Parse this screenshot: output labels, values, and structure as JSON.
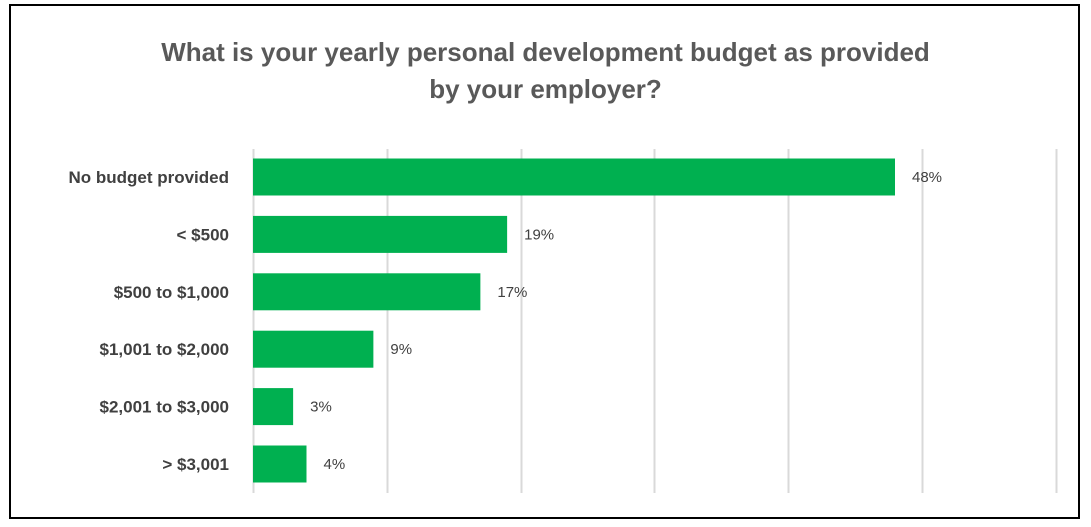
{
  "chart_data": {
    "type": "bar",
    "orientation": "horizontal",
    "title_lines": [
      "What is your yearly personal development budget as provided",
      "by your employer?"
    ],
    "categories": [
      "No budget provided",
      "< $500",
      "$500 to $1,000",
      "$1,001 to $2,000",
      "$2,001 to $3,000",
      "> $3,001"
    ],
    "values": [
      48,
      19,
      17,
      9,
      3,
      4
    ],
    "data_labels": [
      "48%",
      "19%",
      "17%",
      "9%",
      "3%",
      "4%"
    ],
    "unit": "%",
    "xlim": [
      0,
      60
    ],
    "gridline_step": 10,
    "grid": true,
    "legend": "none",
    "bar_color": "#00B050",
    "gridline_color": "#D9D9D9"
  }
}
